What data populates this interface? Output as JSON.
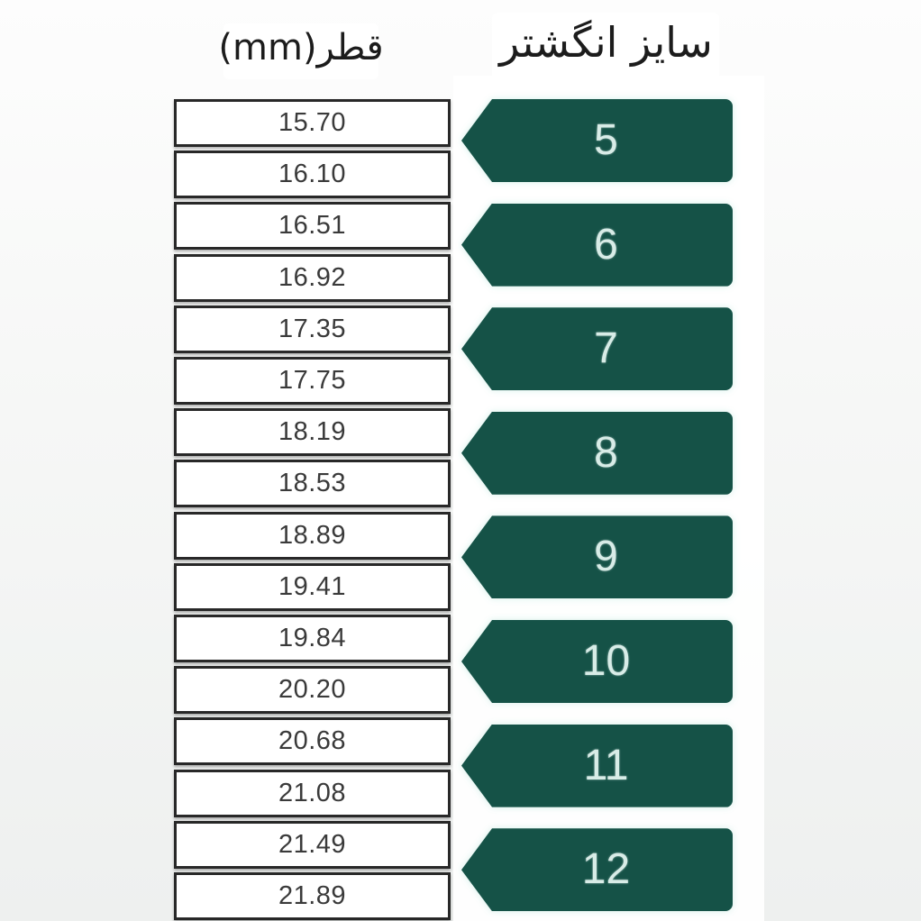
{
  "headers": {
    "diameter": "قطر(mm)",
    "ring_size": "سایز انگشتر"
  },
  "diameters": [
    "15.70",
    "16.10",
    "16.51",
    "16.92",
    "17.35",
    "17.75",
    "18.19",
    "18.53",
    "18.89",
    "19.41",
    "19.84",
    "20.20",
    "20.68",
    "21.08",
    "21.49",
    "21.89"
  ],
  "sizes": [
    "5",
    "6",
    "7",
    "8",
    "9",
    "10",
    "11",
    "12"
  ],
  "colors": {
    "arrow_green": "#155247",
    "arrow_text": "#d8ece7",
    "box_border": "#282828",
    "box_text": "#3a3a3a",
    "page_top": "#fdfdfd",
    "page_bottom": "#eef0ef"
  },
  "chart_data": {
    "type": "table",
    "columns": [
      "سایز انگشتر",
      "قطر(mm)"
    ],
    "rows": [
      {
        "size": "5",
        "diameters_mm": [
          15.7,
          16.1
        ]
      },
      {
        "size": "6",
        "diameters_mm": [
          16.51,
          16.92
        ]
      },
      {
        "size": "7",
        "diameters_mm": [
          17.35,
          17.75
        ]
      },
      {
        "size": "8",
        "diameters_mm": [
          18.19,
          18.53
        ]
      },
      {
        "size": "9",
        "diameters_mm": [
          18.89,
          19.41
        ]
      },
      {
        "size": "10",
        "diameters_mm": [
          19.84,
          20.2
        ]
      },
      {
        "size": "11",
        "diameters_mm": [
          20.68,
          21.08
        ]
      },
      {
        "size": "12",
        "diameters_mm": [
          21.49,
          21.89
        ]
      }
    ],
    "layout": "arrows point left; each ring size spans two diameter cells"
  }
}
